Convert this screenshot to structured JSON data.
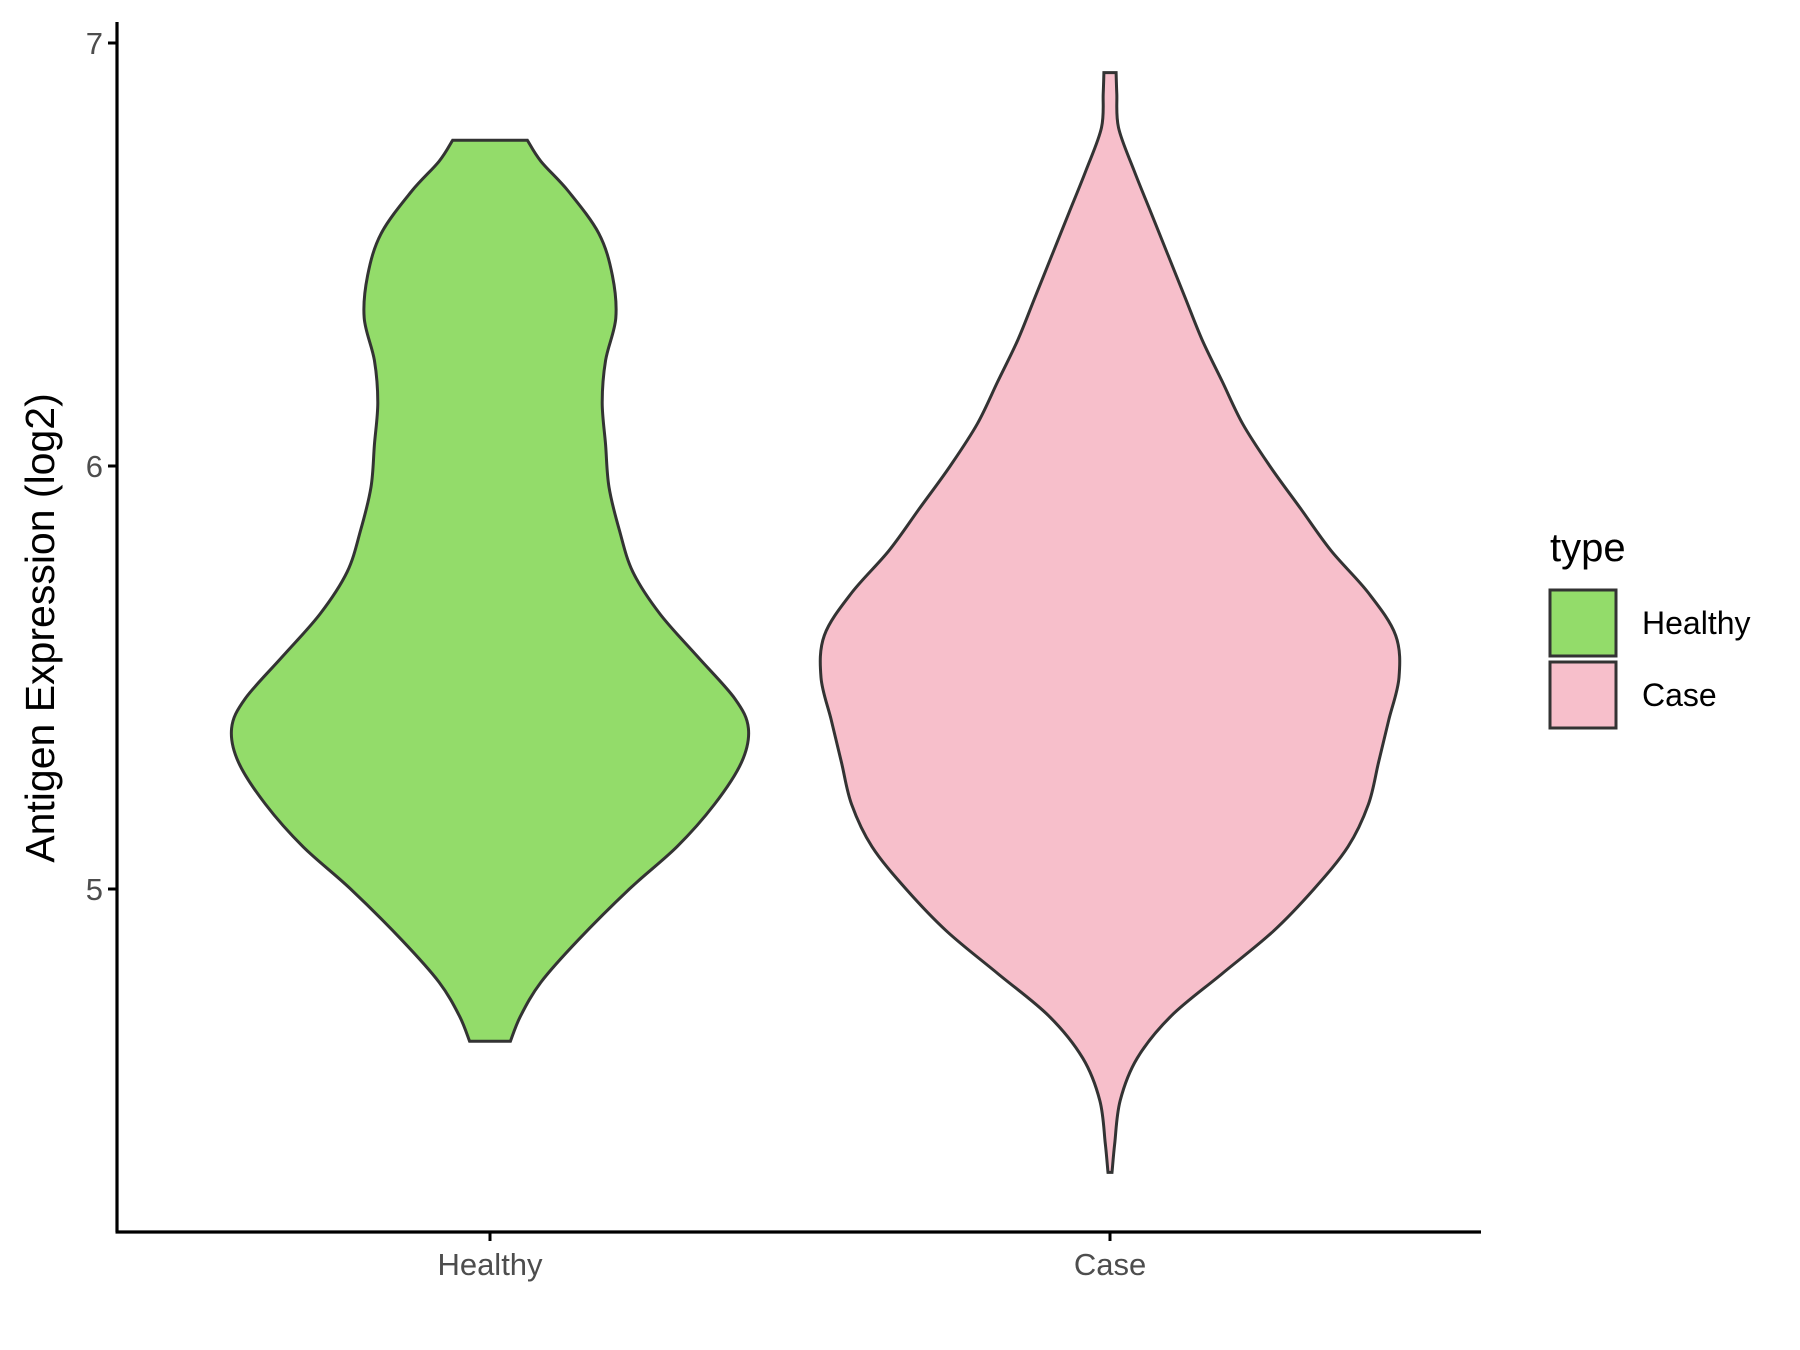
{
  "chart_data": {
    "type": "violin",
    "ylabel": "Antigen Expression (log2)",
    "xlabel": "",
    "categories": [
      "Healthy",
      "Case"
    ],
    "y_ticks": [
      "5",
      "6",
      "7"
    ],
    "ylim": [
      4.22,
      7.05
    ],
    "grid": false,
    "legend": {
      "title": "type",
      "position": "right",
      "entries": [
        "Healthy",
        "Case"
      ]
    },
    "colors": {
      "Healthy": "#93dc6a",
      "Case": "#f7bfcb"
    },
    "series": [
      {
        "name": "Healthy",
        "color": "#93dc6a",
        "range": [
          4.64,
          6.77
        ],
        "profile": [
          [
            4.64,
            0.06
          ],
          [
            4.7,
            0.09
          ],
          [
            4.78,
            0.15
          ],
          [
            4.88,
            0.26
          ],
          [
            5.0,
            0.41
          ],
          [
            5.1,
            0.55
          ],
          [
            5.2,
            0.66
          ],
          [
            5.3,
            0.74
          ],
          [
            5.38,
            0.76
          ],
          [
            5.45,
            0.72
          ],
          [
            5.55,
            0.61
          ],
          [
            5.65,
            0.5
          ],
          [
            5.75,
            0.42
          ],
          [
            5.85,
            0.38
          ],
          [
            5.95,
            0.35
          ],
          [
            6.05,
            0.34
          ],
          [
            6.15,
            0.33
          ],
          [
            6.25,
            0.34
          ],
          [
            6.35,
            0.37
          ],
          [
            6.45,
            0.36
          ],
          [
            6.55,
            0.32
          ],
          [
            6.65,
            0.23
          ],
          [
            6.72,
            0.15
          ],
          [
            6.77,
            0.11
          ]
        ]
      },
      {
        "name": "Case",
        "color": "#f7bfcb",
        "range": [
          4.33,
          6.93
        ],
        "profile": [
          [
            4.33,
            0.006
          ],
          [
            4.4,
            0.014
          ],
          [
            4.5,
            0.03
          ],
          [
            4.6,
            0.08
          ],
          [
            4.7,
            0.18
          ],
          [
            4.8,
            0.33
          ],
          [
            4.9,
            0.48
          ],
          [
            5.0,
            0.6
          ],
          [
            5.1,
            0.7
          ],
          [
            5.2,
            0.76
          ],
          [
            5.3,
            0.79
          ],
          [
            5.4,
            0.82
          ],
          [
            5.5,
            0.85
          ],
          [
            5.6,
            0.84
          ],
          [
            5.7,
            0.76
          ],
          [
            5.8,
            0.65
          ],
          [
            5.9,
            0.56
          ],
          [
            6.0,
            0.47
          ],
          [
            6.1,
            0.39
          ],
          [
            6.2,
            0.33
          ],
          [
            6.3,
            0.27
          ],
          [
            6.4,
            0.22
          ],
          [
            6.5,
            0.17
          ],
          [
            6.6,
            0.12
          ],
          [
            6.7,
            0.07
          ],
          [
            6.8,
            0.025
          ],
          [
            6.88,
            0.02
          ],
          [
            6.93,
            0.018
          ]
        ]
      }
    ]
  }
}
